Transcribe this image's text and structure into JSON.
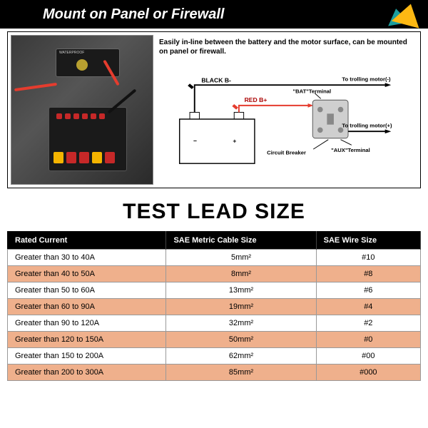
{
  "header": {
    "title": "Mount on Panel or Firewall"
  },
  "diagram": {
    "description": "Easily in-line between the battery and the motor surface, can be mounted on panel or firewall.",
    "breaker_label": "WATERPROOF",
    "labels": {
      "black_b_minus": "BLACK B-",
      "red_b_plus": "RED B+",
      "to_motor_neg": "To trolling motor(-)",
      "to_motor_pos": "To trolling motor(+)",
      "bat_terminal": "\"BAT\"Terminal",
      "aux_terminal": "\"AUX\"Terminal",
      "circuit_breaker": "Circuit Breaker",
      "minus": "−",
      "plus": "+"
    },
    "colors": {
      "black_wire": "#000000",
      "red_wire": "#e53c2e",
      "breaker_body": "#cccccc",
      "battery_outline": "#000000"
    }
  },
  "section_title": "TEST LEAD SIZE",
  "table": {
    "columns": [
      "Rated Current",
      "SAE Metric Cable Size",
      "SAE Wire Size"
    ],
    "rows": [
      {
        "current": "Greater than 30 to 40A",
        "metric": "5mm²",
        "wire": "#10",
        "alt": false
      },
      {
        "current": "Greater than 40 to 50A",
        "metric": "8mm²",
        "wire": "#8",
        "alt": true
      },
      {
        "current": "Greater than 50 to 60A",
        "metric": "13mm²",
        "wire": "#6",
        "alt": false
      },
      {
        "current": "Greater than 60 to 90A",
        "metric": "19mm²",
        "wire": "#4",
        "alt": true
      },
      {
        "current": "Greater than 90 to 120A",
        "metric": "32mm²",
        "wire": "#2",
        "alt": false
      },
      {
        "current": "Greater than 120 to 150A",
        "metric": "50mm²",
        "wire": "#0",
        "alt": true
      },
      {
        "current": "Greater than 150 to 200A",
        "metric": "62mm²",
        "wire": "#00",
        "alt": false
      },
      {
        "current": "Greater than 200 to 300A",
        "metric": "85mm²",
        "wire": "#000",
        "alt": true
      }
    ],
    "colors": {
      "header_bg": "#000000",
      "header_fg": "#ffffff",
      "alt_row_bg": "#efb08c",
      "border": "#999999"
    }
  }
}
